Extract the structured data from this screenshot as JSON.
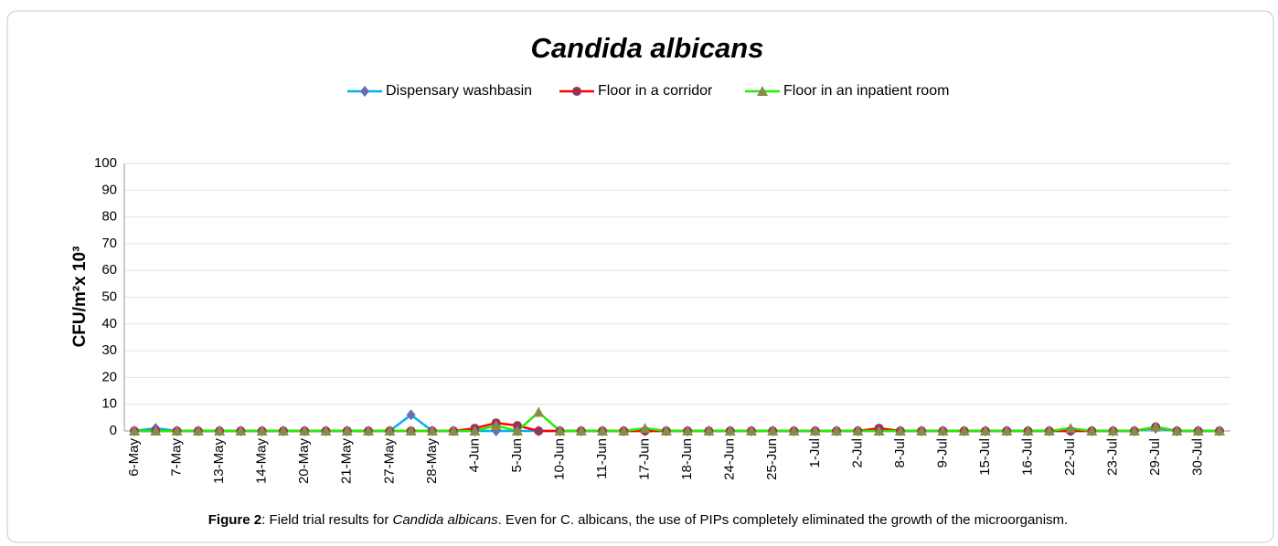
{
  "chart_data": {
    "type": "line",
    "title": "Candida albicans",
    "y_label": "CFU/m²x 10³",
    "categories": [
      "6-May",
      null,
      "7-May",
      null,
      "13-May",
      null,
      "14-May",
      null,
      "20-May",
      null,
      "21-May",
      null,
      "27-May",
      null,
      "28-May",
      null,
      "4-Jun",
      null,
      "5-Jun",
      null,
      "10-Jun",
      null,
      "11-Jun",
      null,
      "17-Jun",
      null,
      "18-Jun",
      null,
      "24-Jun",
      null,
      "25-Jun",
      null,
      "1-Jul",
      null,
      "2-Jul",
      null,
      "8-Jul",
      null,
      "9-Jul",
      null,
      "15-Jul",
      null,
      "16-Jul",
      null,
      "22-Jul",
      null,
      "23-Jul",
      null,
      "29-Jul",
      null,
      "30-Jul",
      null
    ],
    "series": [
      {
        "name": "Dispensary washbasin",
        "color": "#00b0f0",
        "marker": "diamond",
        "marker_color": "#6670b0",
        "values": [
          0,
          1,
          0,
          0,
          0,
          0,
          0,
          0,
          0,
          0,
          0,
          0,
          0,
          6,
          0,
          0,
          0,
          0,
          0,
          0,
          0,
          0,
          0,
          0,
          0,
          0,
          0,
          0,
          0,
          0,
          0,
          0,
          0,
          0,
          0,
          0,
          0,
          0,
          0,
          0,
          0,
          0,
          0,
          0,
          0,
          0,
          0,
          0,
          1,
          0,
          0,
          0
        ]
      },
      {
        "name": "Floor in a corridor",
        "color": "#ff0000",
        "marker": "circle",
        "marker_color": "#993355",
        "values": [
          0,
          0,
          0,
          0,
          0,
          0,
          0,
          0,
          0,
          0,
          0,
          0,
          0,
          0,
          0,
          0,
          1,
          3,
          2,
          0,
          0,
          0,
          0,
          0,
          0,
          0,
          0,
          0,
          0,
          0,
          0,
          0,
          0,
          0,
          0,
          1,
          0,
          0,
          0,
          0,
          0,
          0,
          0,
          0,
          0,
          0,
          0,
          0,
          1.5,
          0,
          0,
          0
        ]
      },
      {
        "name": "Floor in an inpatient room",
        "color": "#22ee00",
        "marker": "triangle",
        "marker_color": "#8a8a4a",
        "values": [
          0,
          0,
          0,
          0,
          0,
          0,
          0,
          0,
          0,
          0,
          0,
          0,
          0,
          0,
          0,
          0,
          0,
          2,
          0,
          7,
          0,
          0,
          0,
          0,
          1,
          0,
          0,
          0,
          0,
          0,
          0,
          0,
          0,
          0,
          0,
          0,
          0,
          0,
          0,
          0,
          0,
          0,
          0,
          0,
          1,
          0,
          0,
          0,
          1.5,
          0,
          0,
          0
        ]
      }
    ],
    "ylim": [
      0,
      100
    ],
    "yticks": [
      0,
      10,
      20,
      30,
      40,
      50,
      60,
      70,
      80,
      90,
      100
    ],
    "grid": true,
    "legend": "top"
  },
  "caption": {
    "label": "Figure 2",
    "text1": ": Field trial results for ",
    "species": "Candida albicans",
    "text2": ". Even for C. albicans, the use of PIPs completely eliminated the growth of the microorganism."
  }
}
